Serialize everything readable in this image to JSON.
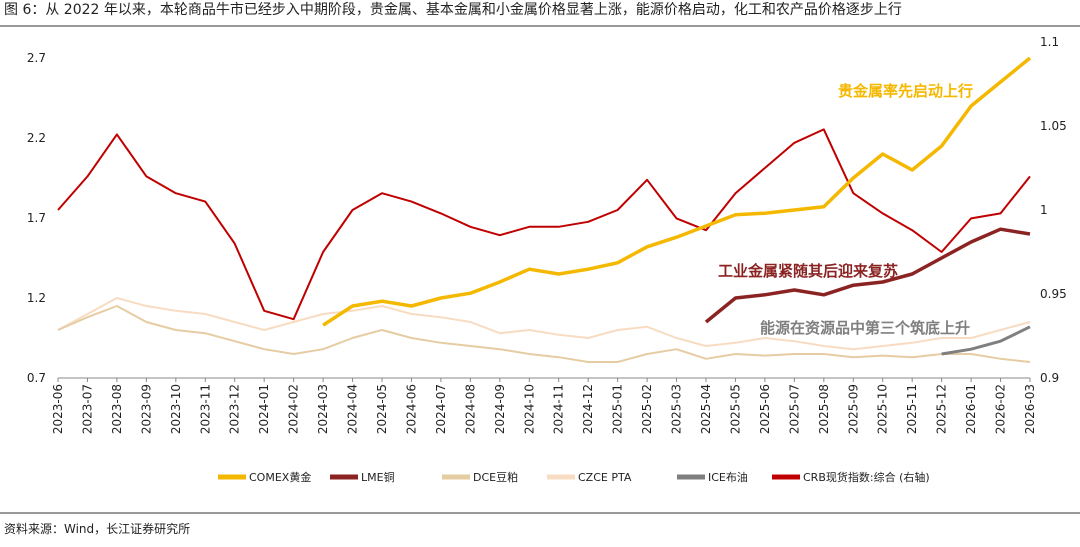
{
  "chart_data": {
    "type": "line",
    "title": "图 6：从 2022 年以来，本轮商品牛市已经步入中期阶段，贵金属、基本金属和小金属价格显著上涨，能源价格启动，化工和农产品价格逐步上行",
    "source": "资料来源：Wind，长江证券研究所",
    "annotations": [
      "贵金属率先启动上行",
      "工业金属紧随其后迎来复苏",
      "能源在资源品中第三个筑底上升"
    ],
    "categories": [
      "2023-06",
      "2023-07",
      "2023-08",
      "2023-09",
      "2023-10",
      "2023-11",
      "2023-12",
      "2024-01",
      "2024-02",
      "2024-03",
      "2024-04",
      "2024-05",
      "2024-06",
      "2024-07",
      "2024-08",
      "2024-09",
      "2024-10",
      "2024-11",
      "2024-12",
      "2025-01",
      "2025-02",
      "2025-03",
      "2025-04",
      "2025-05",
      "2025-06",
      "2025-07",
      "2025-08",
      "2025-09",
      "2025-10",
      "2025-11",
      "2025-12",
      "2026-01",
      "2026-02",
      "2026-03"
    ],
    "ylim": [
      0.7,
      2.8
    ],
    "yticks": [
      0.7,
      1.2,
      1.7,
      2.2,
      2.7
    ],
    "y2lim": [
      0.9,
      1.1
    ],
    "y2ticks": [
      0.9,
      0.95,
      1,
      1.05,
      1.1
    ],
    "series": [
      {
        "name": "COMEX黄金",
        "color": "#f5b800",
        "values": [
          null,
          null,
          null,
          null,
          null,
          null,
          null,
          null,
          null,
          1.03,
          1.15,
          1.18,
          1.15,
          1.2,
          1.23,
          1.3,
          1.38,
          1.35,
          1.38,
          1.42,
          1.52,
          1.58,
          1.65,
          1.72,
          1.73,
          1.75,
          1.77,
          1.95,
          2.1,
          2.0,
          2.15,
          2.4,
          2.55,
          2.7
        ]
      },
      {
        "name": "LME铜",
        "color": "#8b2323",
        "values": [
          null,
          null,
          null,
          null,
          null,
          null,
          null,
          null,
          null,
          null,
          null,
          null,
          null,
          null,
          null,
          null,
          null,
          null,
          null,
          null,
          null,
          null,
          1.05,
          1.2,
          1.22,
          1.25,
          1.22,
          1.28,
          1.3,
          1.35,
          1.45,
          1.55,
          1.63,
          1.6
        ]
      },
      {
        "name": "DCE豆粕",
        "color": "#e6cca3",
        "values": [
          1.0,
          1.08,
          1.15,
          1.05,
          1.0,
          0.98,
          0.93,
          0.88,
          0.85,
          0.88,
          0.95,
          1.0,
          0.95,
          0.92,
          0.9,
          0.88,
          0.85,
          0.83,
          0.8,
          0.8,
          0.85,
          0.88,
          0.82,
          0.85,
          0.84,
          0.85,
          0.85,
          0.83,
          0.84,
          0.83,
          0.85,
          0.85,
          0.82,
          0.8
        ]
      },
      {
        "name": "CZCE PTA",
        "color": "#f8dcc2",
        "values": [
          1.0,
          1.1,
          1.2,
          1.15,
          1.12,
          1.1,
          1.05,
          1.0,
          1.05,
          1.1,
          1.12,
          1.15,
          1.1,
          1.08,
          1.05,
          0.98,
          1.0,
          0.97,
          0.95,
          1.0,
          1.02,
          0.95,
          0.9,
          0.92,
          0.95,
          0.93,
          0.9,
          0.88,
          0.9,
          0.92,
          0.95,
          0.95,
          1.0,
          1.05
        ]
      },
      {
        "name": "ICE布油",
        "color": "#7f7f7f",
        "values": [
          null,
          null,
          null,
          null,
          null,
          null,
          null,
          null,
          null,
          null,
          null,
          null,
          null,
          null,
          null,
          null,
          null,
          null,
          null,
          null,
          null,
          null,
          null,
          null,
          null,
          null,
          null,
          null,
          null,
          null,
          0.85,
          0.88,
          0.93,
          1.02
        ]
      },
      {
        "name": "CRB现货指数:综合 (右轴)",
        "color": "#c00000",
        "axis": "y2",
        "values": [
          1.0,
          1.02,
          1.045,
          1.02,
          1.01,
          1.005,
          0.98,
          0.94,
          0.935,
          0.975,
          1.0,
          1.01,
          1.005,
          0.998,
          0.99,
          0.985,
          0.99,
          0.99,
          0.993,
          1.0,
          1.018,
          0.995,
          0.988,
          1.01,
          1.025,
          1.04,
          1.048,
          1.01,
          0.998,
          0.988,
          0.975,
          0.995,
          0.998,
          1.02
        ]
      }
    ]
  }
}
